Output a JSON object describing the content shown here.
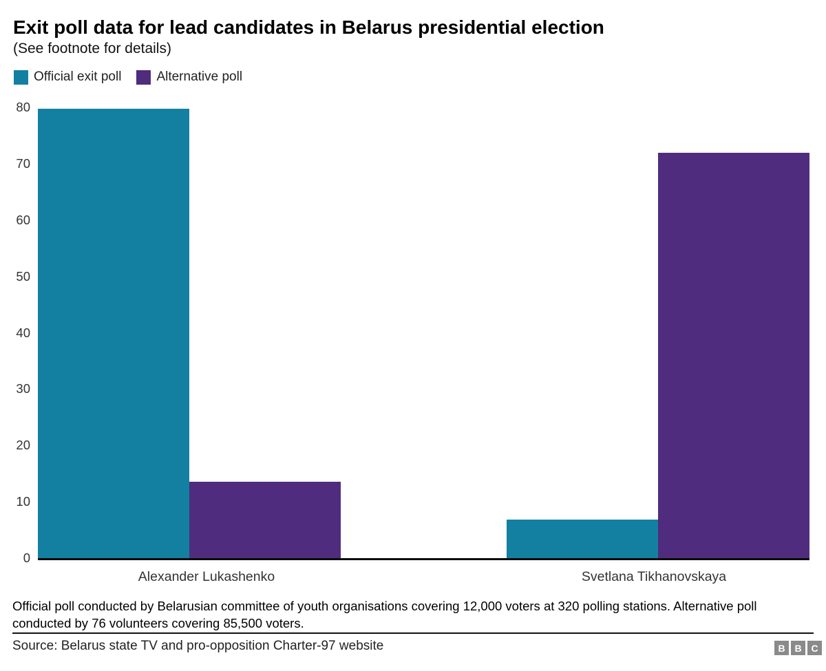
{
  "header": {
    "title": "Exit poll data for lead candidates in Belarus presidential election",
    "subtitle": "(See footnote for details)"
  },
  "legend": [
    {
      "label": "Official exit poll",
      "color": "#1380A1"
    },
    {
      "label": "Alternative poll",
      "color": "#4F2C7D"
    }
  ],
  "chart_data": {
    "type": "bar",
    "title": "Exit poll data for lead candidates in Belarus presidential election",
    "categories": [
      "Alexander Lukashenko",
      "Svetlana Tikhanovskaya"
    ],
    "series": [
      {
        "name": "Official exit poll",
        "color": "#1380A1",
        "values": [
          79.7,
          6.8
        ]
      },
      {
        "name": "Alternative poll",
        "color": "#4F2C7D",
        "values": [
          13.6,
          72
        ]
      }
    ],
    "xlabel": "",
    "ylabel": "",
    "ylim": [
      0,
      80
    ],
    "yticks": [
      0,
      10,
      20,
      30,
      40,
      50,
      60,
      70,
      80
    ],
    "grid": false,
    "legend_position": "top-left",
    "axis_color": "#0a0a0a"
  },
  "footnote": {
    "text": "Official poll conducted by Belarusian committee of youth organisations covering 12,000 voters at 320 polling stations. Alternative poll conducted by 76 volunteers covering 85,500 voters."
  },
  "source": {
    "text": "Source: Belarus state TV and pro-opposition Charter-97 website"
  },
  "logo": {
    "letters": [
      "B",
      "B",
      "C"
    ],
    "block_color": "#8A8A8A",
    "text_color": "#FFFFFF"
  }
}
